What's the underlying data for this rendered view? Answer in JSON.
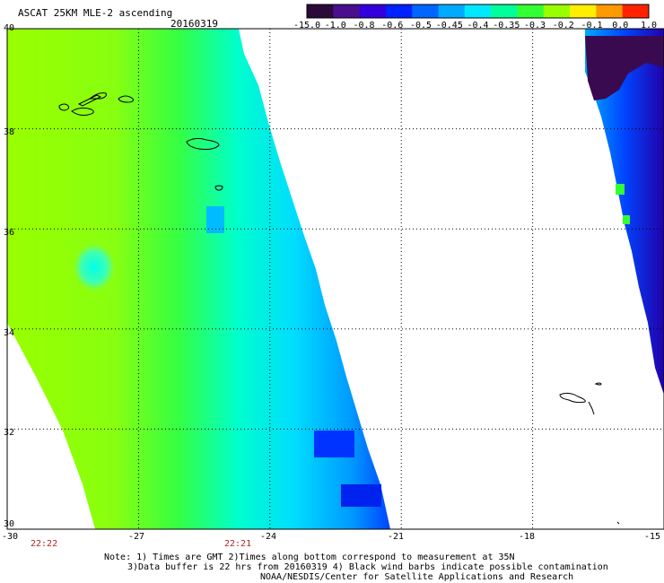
{
  "title": "ASCAT 25KM MLE-2 ascending",
  "date": "20160319",
  "colorbar": {
    "labels": [
      "-15.0",
      "-1.0",
      "-0.8",
      "-0.6",
      "-0.5",
      "-0.45",
      "-0.4",
      "-0.35",
      "-0.3",
      "-0.2",
      "-0.1",
      "0.0",
      "1.0"
    ],
    "colors": [
      "#2a0a38",
      "#4a0f8c",
      "#3300dd",
      "#0022ff",
      "#0066ff",
      "#00aaff",
      "#00e8ff",
      "#00ff99",
      "#33ff33",
      "#99ff00",
      "#ffee00",
      "#ff9900",
      "#ff2200"
    ]
  },
  "map": {
    "lat_labels": [
      "40",
      "38",
      "36",
      "34",
      "32",
      "30"
    ],
    "lon_labels": [
      "-30",
      "-27",
      "-24",
      "-21",
      "-18",
      "-15"
    ],
    "lat_range": [
      30,
      40
    ],
    "lon_range": [
      -30,
      -15
    ]
  },
  "times": [
    "22:22",
    "22:21"
  ],
  "notes": [
    "Note: 1) Times are GMT 2)Times along bottom correspond to measurement at 35N",
    "3)Data buffer is 22 hrs from 20160319 4) Black wind barbs indicate possible contamination",
    "NOAA/NESDIS/Center for Satellite Applications and Research"
  ],
  "colors": {
    "swath_green": "#99ff00",
    "swath_cyan": "#00ffee",
    "swath_blue": "#0033ff",
    "swath_purple": "#3a0a50",
    "coast": "#000000",
    "grid": "#000000"
  }
}
